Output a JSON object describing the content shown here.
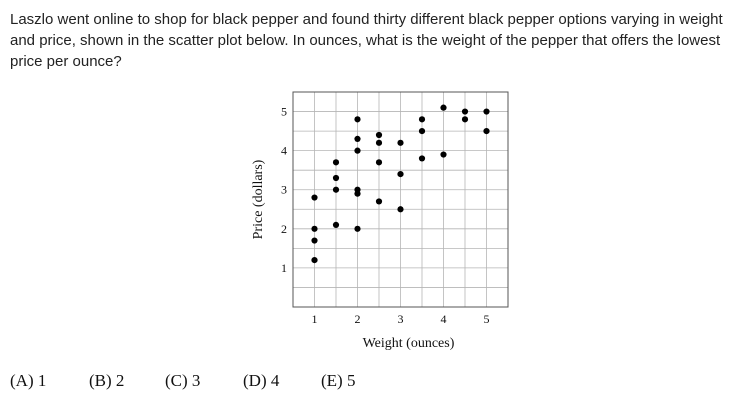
{
  "question": {
    "text": "Laszlo went online to shop for black pepper and found thirty different black pepper options varying in weight and price, shown in the scatter plot below. In ounces, what is the weight of the pepper that offers the lowest price per ounce?"
  },
  "chart_data": {
    "type": "scatter",
    "xlabel": "Weight (ounces)",
    "ylabel": "Price (dollars)",
    "xlim": [
      0.5,
      5.5
    ],
    "ylim": [
      0.0,
      5.5
    ],
    "x_ticks": [
      "1",
      "2",
      "3",
      "4",
      "5"
    ],
    "y_ticks": [
      "1",
      "2",
      "3",
      "4",
      "5"
    ],
    "grid": true,
    "points": [
      {
        "x": 1.0,
        "y": 1.2
      },
      {
        "x": 1.0,
        "y": 1.7
      },
      {
        "x": 1.0,
        "y": 2.0
      },
      {
        "x": 1.0,
        "y": 2.8
      },
      {
        "x": 1.5,
        "y": 2.1
      },
      {
        "x": 1.5,
        "y": 3.0
      },
      {
        "x": 1.5,
        "y": 3.3
      },
      {
        "x": 1.5,
        "y": 3.7
      },
      {
        "x": 2.0,
        "y": 2.0
      },
      {
        "x": 2.0,
        "y": 2.9
      },
      {
        "x": 2.0,
        "y": 3.0
      },
      {
        "x": 2.0,
        "y": 4.0
      },
      {
        "x": 2.0,
        "y": 4.3
      },
      {
        "x": 2.0,
        "y": 4.8
      },
      {
        "x": 2.5,
        "y": 2.7
      },
      {
        "x": 2.5,
        "y": 3.7
      },
      {
        "x": 2.5,
        "y": 4.2
      },
      {
        "x": 2.5,
        "y": 4.4
      },
      {
        "x": 3.0,
        "y": 2.5
      },
      {
        "x": 3.0,
        "y": 3.4
      },
      {
        "x": 3.0,
        "y": 4.2
      },
      {
        "x": 3.5,
        "y": 3.8
      },
      {
        "x": 3.5,
        "y": 4.5
      },
      {
        "x": 3.5,
        "y": 4.8
      },
      {
        "x": 4.0,
        "y": 3.9
      },
      {
        "x": 4.0,
        "y": 5.1
      },
      {
        "x": 4.5,
        "y": 4.8
      },
      {
        "x": 4.5,
        "y": 5.0
      },
      {
        "x": 5.0,
        "y": 4.5
      },
      {
        "x": 5.0,
        "y": 5.0
      }
    ]
  },
  "choices": [
    {
      "letter": "(A)",
      "value": "1"
    },
    {
      "letter": "(B)",
      "value": "2"
    },
    {
      "letter": "(C)",
      "value": "3"
    },
    {
      "letter": "(D)",
      "value": "4"
    },
    {
      "letter": "(E)",
      "value": "5"
    }
  ]
}
